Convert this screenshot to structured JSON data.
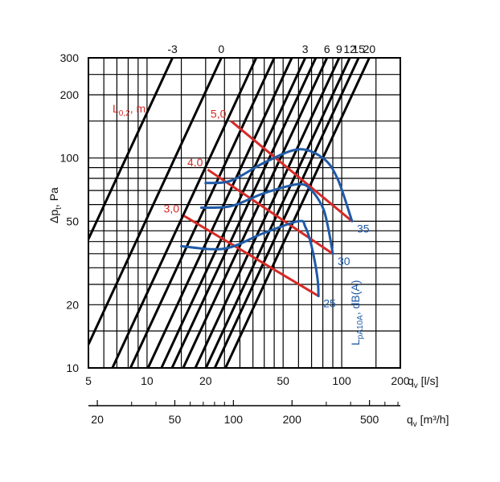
{
  "chart_data": {
    "type": "line",
    "y_axis": {
      "label_main": "Δp",
      "label_sub": "t",
      "label_unit": ", Pa",
      "scale": "log",
      "range": [
        10,
        300
      ],
      "ticks": [
        {
          "value": 10,
          "label": "10"
        },
        {
          "value": 20,
          "label": "20"
        },
        {
          "value": 50,
          "label": "50"
        },
        {
          "value": 100,
          "label": "100"
        },
        {
          "value": 200,
          "label": "200"
        },
        {
          "value": 300,
          "label": "300"
        }
      ],
      "gridlines": [
        10,
        15,
        20,
        25,
        30,
        35,
        40,
        45,
        50,
        60,
        70,
        80,
        90,
        100,
        150,
        200,
        250,
        300
      ]
    },
    "x_axis_ls": {
      "label_main": "q",
      "label_sub": "v",
      "label_unit": " [l/s]",
      "scale": "log",
      "range": [
        5,
        200
      ],
      "ticks": [
        {
          "value": 5,
          "label": "5"
        },
        {
          "value": 10,
          "label": "10"
        },
        {
          "value": 20,
          "label": "20"
        },
        {
          "value": 50,
          "label": "50"
        },
        {
          "value": 100,
          "label": "100"
        },
        {
          "value": 200,
          "label": "200"
        }
      ],
      "gridlines": [
        5,
        6,
        7,
        8,
        9,
        10,
        15,
        20,
        25,
        30,
        35,
        40,
        45,
        50,
        60,
        70,
        80,
        90,
        100,
        150,
        200
      ]
    },
    "x_axis_m3h": {
      "label_main": "q",
      "label_sub": "v",
      "label_unit": " [m³/h]",
      "scale": "log",
      "ticks": [
        {
          "value": 20,
          "label": "20"
        },
        {
          "value": 50,
          "label": "50"
        },
        {
          "value": 100,
          "label": "100"
        },
        {
          "value": 200,
          "label": "200"
        },
        {
          "value": 500,
          "label": "500"
        }
      ],
      "minor": [
        30,
        40,
        60,
        70,
        80,
        90,
        300,
        400,
        600,
        700
      ]
    },
    "diagonal_lines": {
      "description": "setting lines Δp ∝ qv² (labelled settings)",
      "lines": [
        {
          "label": "-3",
          "p100_at_qv": 7.8
        },
        {
          "label": "0",
          "p100_at_qv": 13.9
        },
        {
          "label": "",
          "p100_at_qv": 21.0
        },
        {
          "label": "",
          "p100_at_qv": 26.0
        },
        {
          "label": "",
          "p100_at_qv": 32.0
        },
        {
          "label": "3",
          "p100_at_qv": 37.5
        },
        {
          "label": "",
          "p100_at_qv": 42.5
        },
        {
          "label": "6",
          "p100_at_qv": 48.5
        },
        {
          "label": "9",
          "p100_at_qv": 56.0
        },
        {
          "label": "12",
          "p100_at_qv": 63.5
        },
        {
          "label": "15",
          "p100_at_qv": 70.5
        },
        {
          "label": "20",
          "p100_at_qv": 80.0
        }
      ]
    },
    "throw_lines": {
      "title_main": "L",
      "title_sub": "0,2",
      "title_unit": ", m",
      "color": "#d52a26",
      "series": [
        {
          "name": "5,0",
          "points": [
            [
              27,
              150
            ],
            [
              113,
              50
            ]
          ]
        },
        {
          "name": "4,0",
          "points": [
            [
              20.5,
              88
            ],
            [
              90,
              35
            ]
          ]
        },
        {
          "name": "3,0",
          "points": [
            [
              15.5,
              53
            ],
            [
              76,
              22
            ]
          ]
        }
      ]
    },
    "sound_lines": {
      "title_main": "L",
      "title_sub": "pA10A",
      "title_unit": ", dB(A)",
      "color": "#1f5aa6",
      "series": [
        {
          "name": "35",
          "points": [
            [
              20,
              76
            ],
            [
              27,
              78
            ],
            [
              40,
              95
            ],
            [
              60,
              110
            ],
            [
              80,
              100
            ],
            [
              95,
              80
            ],
            [
              113,
              50
            ]
          ]
        },
        {
          "name": "30",
          "points": [
            [
              19,
              58
            ],
            [
              27,
              59
            ],
            [
              40,
              68
            ],
            [
              60,
              75
            ],
            [
              70,
              70
            ],
            [
              80,
              58
            ],
            [
              85,
              47
            ],
            [
              90,
              35
            ]
          ]
        },
        {
          "name": "25",
          "points": [
            [
              15,
              38
            ],
            [
              25,
              37
            ],
            [
              40,
              44
            ],
            [
              60,
              50
            ],
            [
              65,
              47
            ],
            [
              70,
              38
            ],
            [
              75,
              27
            ],
            [
              76,
              22
            ]
          ]
        }
      ]
    }
  }
}
